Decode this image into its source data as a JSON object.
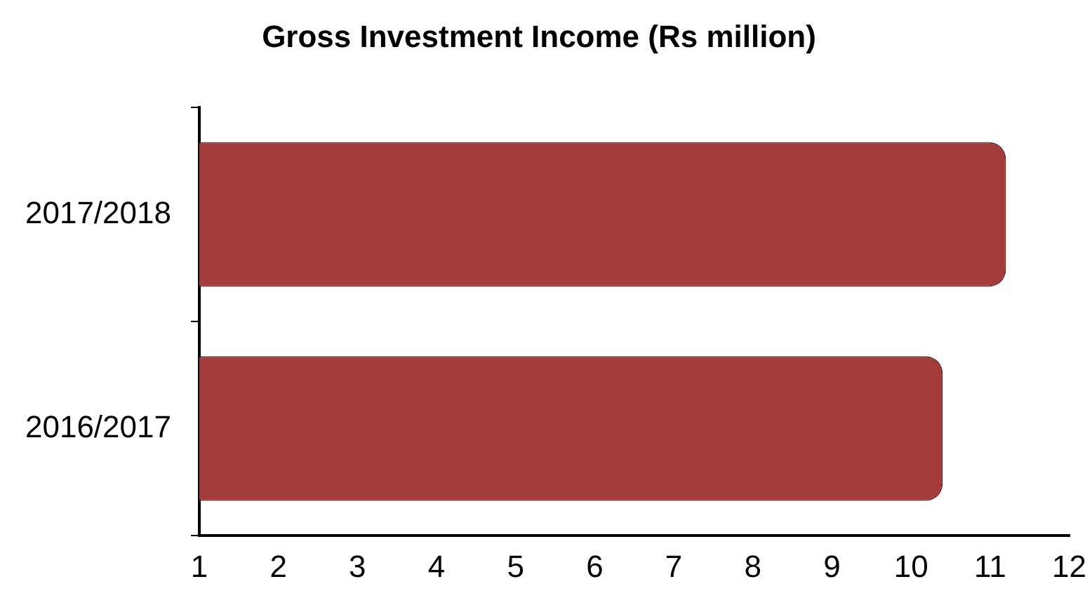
{
  "chart_data": {
    "type": "bar",
    "orientation": "horizontal",
    "title": "Gross Investment Income (Rs million)",
    "categories": [
      "2017/2018",
      "2016/2017"
    ],
    "values": [
      11.2,
      10.4
    ],
    "color": "#a33b3b",
    "xlim": [
      1,
      12
    ],
    "xticks": [
      1,
      2,
      3,
      4,
      5,
      6,
      7,
      8,
      9,
      10,
      11,
      12
    ],
    "grid": false,
    "legend": false
  }
}
